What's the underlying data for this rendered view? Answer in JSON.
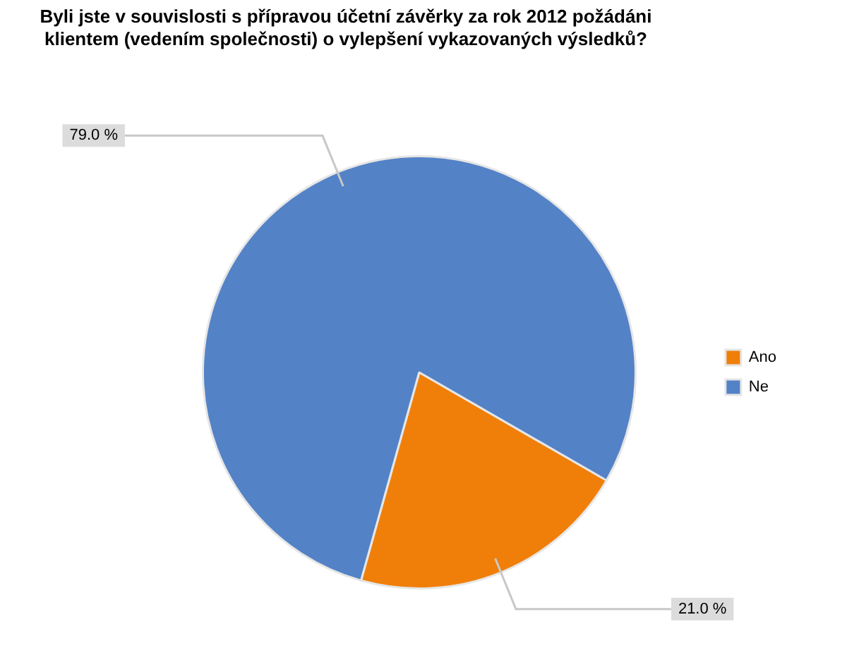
{
  "chart_data": {
    "type": "pie",
    "title": "Byli jste v souvislosti s přípravou účetní závěrky za rok 2012 požádáni klientem (vedením společnosti) o vylepšení vykazovaných výsledků?",
    "categories": [
      "Ano",
      "Ne"
    ],
    "values": [
      21.0,
      79.0
    ],
    "colors": [
      "#f07f09",
      "#5382c6"
    ],
    "value_labels": [
      "21.0 %",
      "79.0 %"
    ],
    "legend": "right"
  }
}
